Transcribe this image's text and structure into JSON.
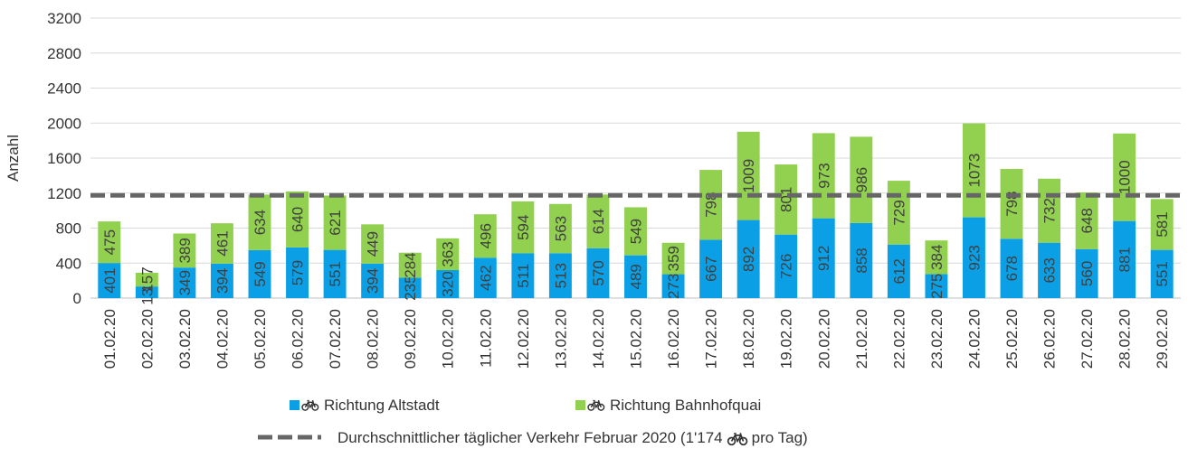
{
  "chart_data": {
    "type": "stacked_bar",
    "y_label": "Anzahl",
    "categories": [
      "01.02.20",
      "02.02.20",
      "03.02.20",
      "04.02.20",
      "05.02.20",
      "06.02.20",
      "07.02.20",
      "08.02.20",
      "09.02.20",
      "10.02.20",
      "11.02.20",
      "12.02.20",
      "13.02.20",
      "14.02.20",
      "15.02.20",
      "16.02.20",
      "17.02.20",
      "18.02.20",
      "19.02.20",
      "20.02.20",
      "21.02.20",
      "22.02.20",
      "23.02.20",
      "24.02.20",
      "25.02.20",
      "26.02.20",
      "27.02.20",
      "28.02.20",
      "29.02.20"
    ],
    "series": [
      {
        "name": "Richtung Altstadt",
        "color": "#0ba0e6",
        "values": [
          401,
          133,
          349,
          394,
          549,
          579,
          551,
          394,
          235,
          320,
          462,
          511,
          513,
          570,
          489,
          273,
          667,
          892,
          726,
          912,
          858,
          612,
          275,
          923,
          678,
          633,
          560,
          881,
          551
        ]
      },
      {
        "name": "Richtung Bahnhofquai",
        "color": "#92d050",
        "values": [
          475,
          157,
          389,
          461,
          634,
          640,
          621,
          449,
          284,
          363,
          496,
          594,
          563,
          614,
          549,
          359,
          798,
          1009,
          801,
          973,
          986,
          729,
          384,
          1073,
          798,
          732,
          648,
          1000,
          581
        ]
      }
    ],
    "reference_line": {
      "value": 1174,
      "color": "#666666",
      "label_before": "Durchschnittlicher täglicher Verkehr Februar 2020 (1'174",
      "label_after": "pro Tag)"
    },
    "ylim": [
      0,
      3200
    ],
    "yticks": [
      0,
      400,
      800,
      1200,
      1600,
      2000,
      2400,
      2800,
      3200
    ],
    "grid": true
  }
}
